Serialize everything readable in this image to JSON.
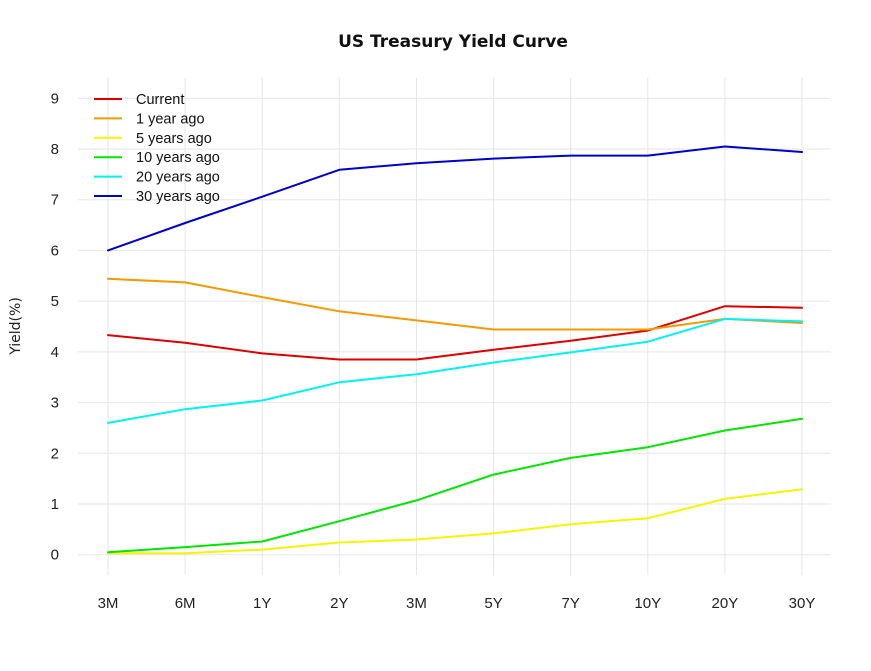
{
  "chart_data": {
    "type": "line",
    "title": "US Treasury Yield Curve",
    "xlabel": "",
    "ylabel": "Yield(%)",
    "categories": [
      "3M",
      "6M",
      "1Y",
      "2Y",
      "3M",
      "5Y",
      "7Y",
      "10Y",
      "20Y",
      "30Y"
    ],
    "ylim": [
      -0.4,
      9.4
    ],
    "yticks": [
      0,
      1,
      2,
      3,
      4,
      5,
      6,
      7,
      8,
      9
    ],
    "grid": true,
    "legend_position": "top-left",
    "series": [
      {
        "name": "Current",
        "color": "#dd0000",
        "values": [
          4.33,
          4.18,
          3.97,
          3.85,
          3.85,
          4.04,
          4.22,
          4.42,
          4.9,
          4.87
        ]
      },
      {
        "name": "1 year ago",
        "color": "#f59a00",
        "values": [
          5.44,
          5.37,
          5.08,
          4.8,
          4.62,
          4.44,
          4.44,
          4.44,
          4.65,
          4.57
        ]
      },
      {
        "name": "5 years ago",
        "color": "#f5f500",
        "values": [
          0.03,
          0.03,
          0.1,
          0.24,
          0.3,
          0.42,
          0.6,
          0.72,
          1.1,
          1.29
        ]
      },
      {
        "name": "10 years ago",
        "color": "#00e600",
        "values": [
          0.05,
          0.15,
          0.26,
          0.66,
          1.07,
          1.58,
          1.91,
          2.12,
          2.45,
          2.68
        ]
      },
      {
        "name": "20 years ago",
        "color": "#00f2f2",
        "values": [
          2.6,
          2.87,
          3.04,
          3.4,
          3.56,
          3.79,
          3.99,
          4.2,
          4.65,
          4.6
        ]
      },
      {
        "name": "30 years ago",
        "color": "#0000cc",
        "values": [
          6.0,
          6.54,
          7.06,
          7.59,
          7.72,
          7.81,
          7.87,
          7.87,
          8.05,
          7.94
        ]
      }
    ]
  }
}
